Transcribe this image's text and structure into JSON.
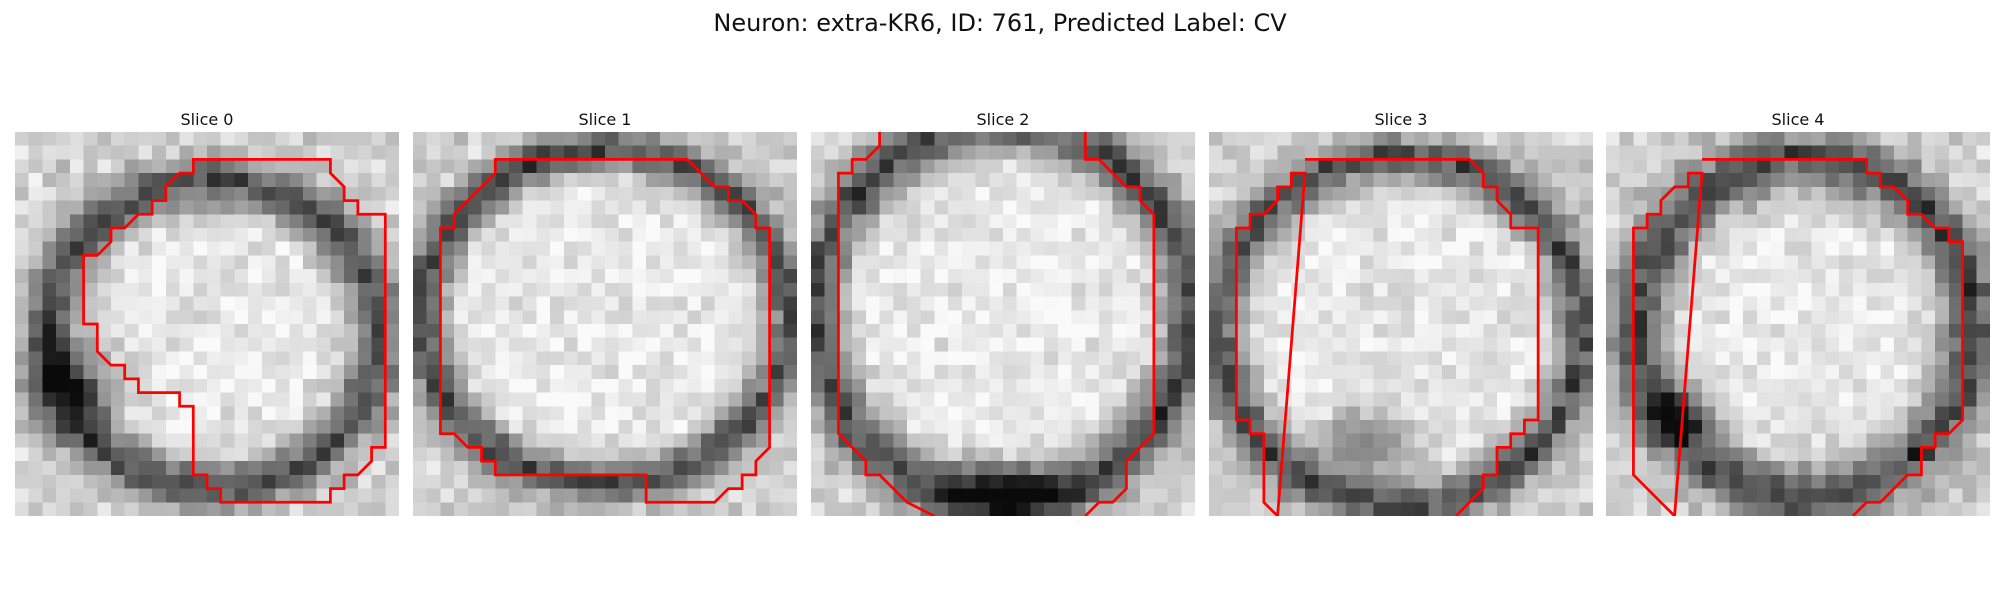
{
  "figure": {
    "title": "Neuron: extra-KR6, ID: 761, Predicted Label: CV"
  },
  "colors": {
    "contour": "#ff0000",
    "dark_ring": "#2a2a2a",
    "bright_interior": "#e6e6e6"
  },
  "slices": [
    {
      "label": "Slice 0"
    },
    {
      "label": "Slice 1"
    },
    {
      "label": "Slice 2"
    },
    {
      "label": "Slice 3"
    },
    {
      "label": "Slice 4"
    }
  ]
}
